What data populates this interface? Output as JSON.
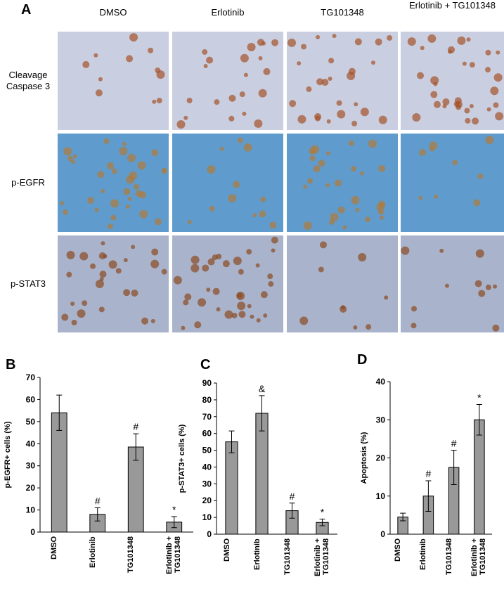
{
  "panel_a": {
    "label": "A",
    "columns": [
      "DMSO",
      "Erlotinib",
      "TG101348",
      "Erlotinib + TG101348"
    ],
    "rows": [
      "Cleavage Caspase 3",
      "p-EGFR",
      "p-STAT3"
    ]
  },
  "chart_data": [
    {
      "type": "bar",
      "panel": "B",
      "ylabel": "p-EGFR+ cells (%)",
      "categories": [
        "DMSO",
        "Erlotinib",
        "TG101348",
        "Erlotinib + TG101348"
      ],
      "values": [
        54,
        8,
        38.5,
        4.5
      ],
      "errors": [
        8,
        3,
        6,
        2.5
      ],
      "markers": [
        null,
        "#",
        "#",
        "*"
      ],
      "color": "#999999",
      "ylim": [
        0,
        70
      ],
      "yticks": [
        0,
        10,
        20,
        30,
        40,
        50,
        60,
        70
      ]
    },
    {
      "type": "bar",
      "panel": "C",
      "ylabel": "p-STAT3+ cells (%)",
      "categories": [
        "DMSO",
        "Erlotinib",
        "TG101348",
        "Erlotinib + TG101348"
      ],
      "values": [
        55,
        72,
        14,
        7
      ],
      "errors": [
        6.5,
        10.5,
        4.5,
        2
      ],
      "markers": [
        null,
        "&",
        "#",
        "*"
      ],
      "color": "#999999",
      "ylim": [
        0,
        90
      ],
      "yticks": [
        0,
        10,
        20,
        30,
        40,
        50,
        60,
        70,
        80,
        90
      ]
    },
    {
      "type": "bar",
      "panel": "D",
      "ylabel": "Apoptosis (%)",
      "categories": [
        "DMSO",
        "Erlotinib",
        "TG101348",
        "Erlotinib + TG101348"
      ],
      "values": [
        4.5,
        10,
        17.5,
        30
      ],
      "errors": [
        1,
        4,
        4.5,
        4
      ],
      "markers": [
        null,
        "#",
        "#",
        "*"
      ],
      "color": "#999999",
      "ylim": [
        0,
        40
      ],
      "yticks": [
        0,
        10,
        20,
        30,
        40
      ]
    }
  ]
}
